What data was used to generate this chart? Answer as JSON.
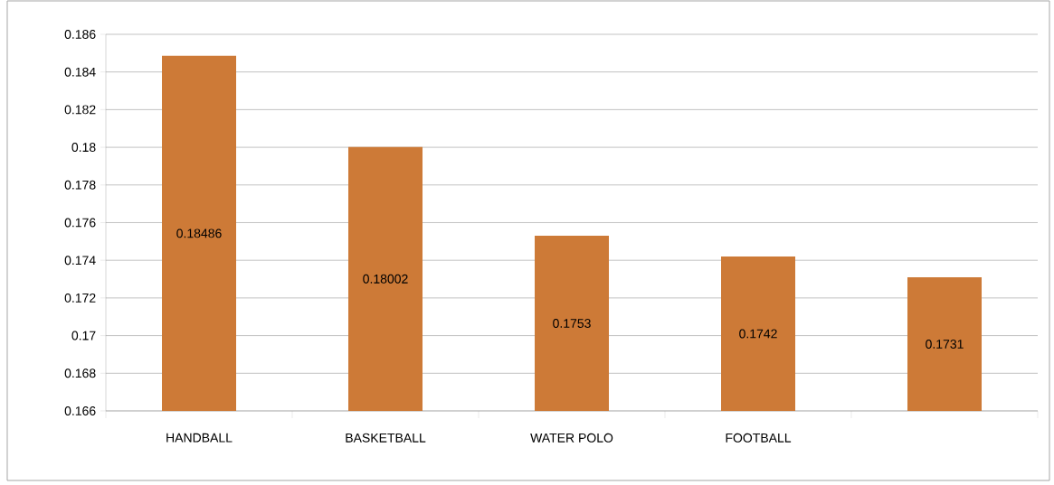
{
  "chart_data": {
    "type": "bar",
    "categories": [
      "HANDBALL",
      "BASKETBALL",
      "WATER POLO",
      "FOOTBALL",
      null
    ],
    "values": [
      0.18486,
      0.18002,
      0.1753,
      0.1742,
      0.1731
    ],
    "value_labels": [
      "0.18486",
      "0.18002",
      "0.1753",
      "0.1742",
      "0.1731"
    ],
    "color": "#cd7a37",
    "ylim": [
      0.166,
      0.186
    ],
    "yticks": [
      0.166,
      0.168,
      0.17,
      0.172,
      0.174,
      0.176,
      0.178,
      0.18,
      0.182,
      0.184,
      0.186
    ],
    "grid": "y"
  }
}
